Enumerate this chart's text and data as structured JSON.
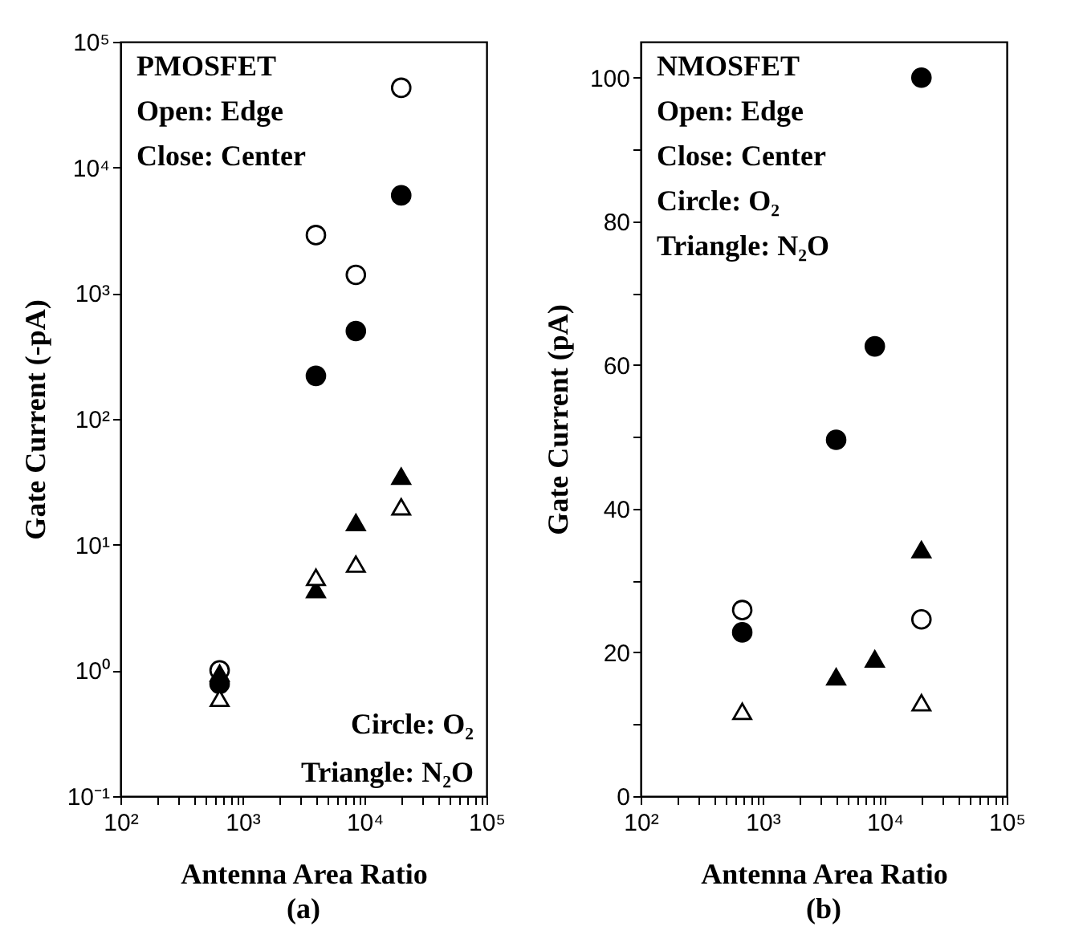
{
  "chart_data": [
    {
      "type": "scatter",
      "title": "(a)",
      "xlabel": "Antenna Area Ratio",
      "ylabel": "Gate Current (-pA)",
      "log": "xy",
      "x": [
        650,
        4000,
        8500,
        20000
      ],
      "xlim": [
        100,
        100000
      ],
      "xticks": [
        {
          "value": 100,
          "label": "10²"
        },
        {
          "value": 200,
          "label": null
        },
        {
          "value": 300,
          "label": null
        },
        {
          "value": 400,
          "label": null
        },
        {
          "value": 500,
          "label": null
        },
        {
          "value": 600,
          "label": null
        },
        {
          "value": 700,
          "label": null
        },
        {
          "value": 800,
          "label": null
        },
        {
          "value": 900,
          "label": null
        },
        {
          "value": 1000,
          "label": "10³"
        },
        {
          "value": 2000,
          "label": null
        },
        {
          "value": 3000,
          "label": null
        },
        {
          "value": 4000,
          "label": null
        },
        {
          "value": 5000,
          "label": null
        },
        {
          "value": 6000,
          "label": null
        },
        {
          "value": 7000,
          "label": null
        },
        {
          "value": 8000,
          "label": null
        },
        {
          "value": 9000,
          "label": null
        },
        {
          "value": 10000,
          "label": "10⁴"
        },
        {
          "value": 20000,
          "label": null
        },
        {
          "value": 30000,
          "label": null
        },
        {
          "value": 40000,
          "label": null
        },
        {
          "value": 50000,
          "label": null
        },
        {
          "value": 60000,
          "label": null
        },
        {
          "value": 70000,
          "label": null
        },
        {
          "value": 80000,
          "label": null
        },
        {
          "value": 90000,
          "label": null
        },
        {
          "value": 100000,
          "label": "10⁵"
        }
      ],
      "ylim": [
        0.1,
        100000
      ],
      "yticks": [
        {
          "value": 0.1,
          "label": "10⁻¹"
        },
        {
          "value": 1,
          "label": "10⁰"
        },
        {
          "value": 10,
          "label": "10¹"
        },
        {
          "value": 100,
          "label": "10²"
        },
        {
          "value": 1000,
          "label": "10³"
        },
        {
          "value": 10000,
          "label": "10⁴"
        },
        {
          "value": 100000,
          "label": "10⁵"
        }
      ],
      "series": [
        {
          "color": "#ffffff",
          "marker": "circle",
          "values": [
            1.0,
            2900,
            1400,
            43000
          ]
        },
        {
          "color": "#000000",
          "marker": "circle",
          "values": [
            0.78,
            220,
            500,
            6000
          ]
        },
        {
          "color": "#000000",
          "marker": "triangle",
          "values": [
            0.95,
            4.4,
            15,
            35
          ]
        },
        {
          "color": "#ffffff",
          "marker": "triangle",
          "values": [
            0.6,
            5.5,
            7,
            20
          ]
        }
      ],
      "annotations": [
        "PMOSFET",
        "Open: Edge",
        "Close: Center",
        "Circle: O₂",
        "Triangle: N₂O"
      ]
    },
    {
      "type": "scatter",
      "title": "(b)",
      "xlabel": "Antenna Area Ratio",
      "ylabel": "Gate Current (pA)",
      "log": "x",
      "x": [
        680,
        4000,
        8300,
        20000
      ],
      "xlim": [
        100,
        100000
      ],
      "xticks": [
        {
          "value": 100,
          "label": "10²"
        },
        {
          "value": 200,
          "label": null
        },
        {
          "value": 300,
          "label": null
        },
        {
          "value": 400,
          "label": null
        },
        {
          "value": 500,
          "label": null
        },
        {
          "value": 600,
          "label": null
        },
        {
          "value": 700,
          "label": null
        },
        {
          "value": 800,
          "label": null
        },
        {
          "value": 900,
          "label": null
        },
        {
          "value": 1000,
          "label": "10³"
        },
        {
          "value": 2000,
          "label": null
        },
        {
          "value": 3000,
          "label": null
        },
        {
          "value": 4000,
          "label": null
        },
        {
          "value": 5000,
          "label": null
        },
        {
          "value": 6000,
          "label": null
        },
        {
          "value": 7000,
          "label": null
        },
        {
          "value": 8000,
          "label": null
        },
        {
          "value": 9000,
          "label": null
        },
        {
          "value": 10000,
          "label": "10⁴"
        },
        {
          "value": 20000,
          "label": null
        },
        {
          "value": 30000,
          "label": null
        },
        {
          "value": 40000,
          "label": null
        },
        {
          "value": 50000,
          "label": null
        },
        {
          "value": 60000,
          "label": null
        },
        {
          "value": 70000,
          "label": null
        },
        {
          "value": 80000,
          "label": null
        },
        {
          "value": 90000,
          "label": null
        },
        {
          "value": 100000,
          "label": "10⁵"
        }
      ],
      "ylim": [
        0,
        105
      ],
      "yticks": [
        0,
        {
          "value": 10,
          "label": null
        },
        20,
        {
          "value": 30,
          "label": null
        },
        40,
        {
          "value": 50,
          "label": null
        },
        60,
        {
          "value": 70,
          "label": null
        },
        80,
        {
          "value": 90,
          "label": null
        },
        100
      ],
      "series": [
        {
          "color": "#ffffff",
          "marker": "circle",
          "values": [
            25.9,
            null,
            null,
            24.6
          ]
        },
        {
          "color": "#000000",
          "marker": "circle",
          "values": [
            22.8,
            49.6,
            62.6,
            100
          ]
        },
        {
          "color": "#000000",
          "marker": "triangle",
          "values": [
            null,
            16.6,
            19.1,
            34.3
          ]
        },
        {
          "color": "#ffffff",
          "marker": "triangle",
          "values": [
            11.8,
            null,
            null,
            13
          ]
        }
      ],
      "annotations": [
        "NMOSFET",
        "Open: Edge",
        "Close: Center",
        "Circle: O₂",
        "Triangle: N₂O"
      ]
    }
  ]
}
